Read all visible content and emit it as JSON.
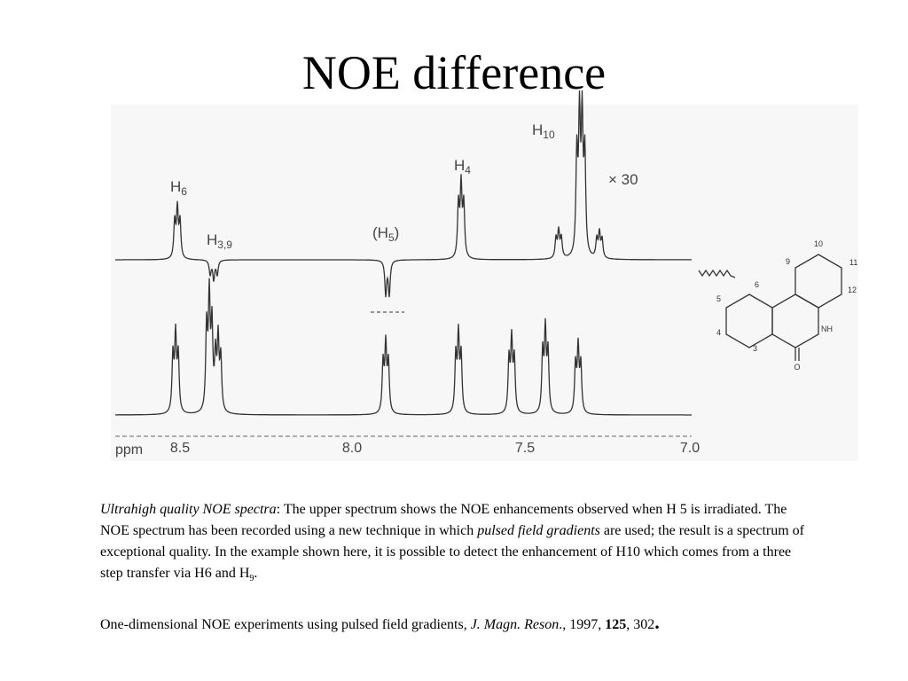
{
  "title": "NOE difference",
  "figure": {
    "peak_labels": [
      {
        "base": "H",
        "sub": "6"
      },
      {
        "base": "H",
        "sub": "3,9"
      },
      {
        "base": "(H",
        "sub": "5",
        "tail": ")"
      },
      {
        "base": "H",
        "sub": "4"
      },
      {
        "base": "H",
        "sub": "10"
      }
    ],
    "multiplier": "× 30",
    "axis_unit": "ppm",
    "axis_ticks": [
      "8.5",
      "8.0",
      "7.5",
      "7.0"
    ],
    "structure_labels": [
      "10",
      "11",
      "12",
      "9",
      "6",
      "5",
      "4",
      "3",
      "NH",
      "O"
    ]
  },
  "caption": [
    "Ultrahigh quality NOE spectra",
    ": The upper spectrum shows the NOE enhancements observed when H 5 is irradiated. The NOE spectrum has been recorded using a new technique in which ",
    "pulsed field gradients",
    " are used; the result is a spectrum of exceptional quality. In the example shown here, it is possible to detect the enhancement of H10 which comes from a three step transfer via H6 and H",
    "9",
    "."
  ],
  "reference": [
    "One-dimensional NOE experiments using pulsed field gradients, ",
    "J. Magn. Reson",
    "., 1997, ",
    "125",
    ", 302",
    "."
  ]
}
